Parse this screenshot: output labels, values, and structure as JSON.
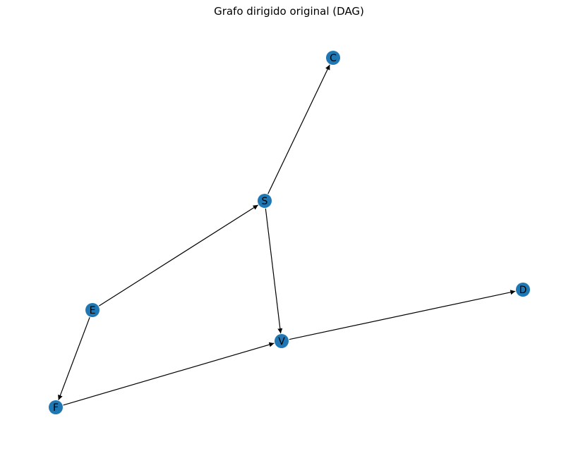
{
  "title": "Grafo dirigido original (DAG)",
  "colors": {
    "node": "#1f77b4",
    "edge": "#000000",
    "label": "#000000"
  },
  "nodes": [
    {
      "id": "C",
      "label": "C"
    },
    {
      "id": "S",
      "label": "S"
    },
    {
      "id": "D",
      "label": "D"
    },
    {
      "id": "E",
      "label": "E"
    },
    {
      "id": "V",
      "label": "V"
    },
    {
      "id": "F",
      "label": "F"
    }
  ],
  "edges": [
    {
      "from": "S",
      "to": "C"
    },
    {
      "from": "S",
      "to": "V"
    },
    {
      "from": "E",
      "to": "S"
    },
    {
      "from": "E",
      "to": "F"
    },
    {
      "from": "F",
      "to": "V"
    },
    {
      "from": "V",
      "to": "D"
    }
  ]
}
